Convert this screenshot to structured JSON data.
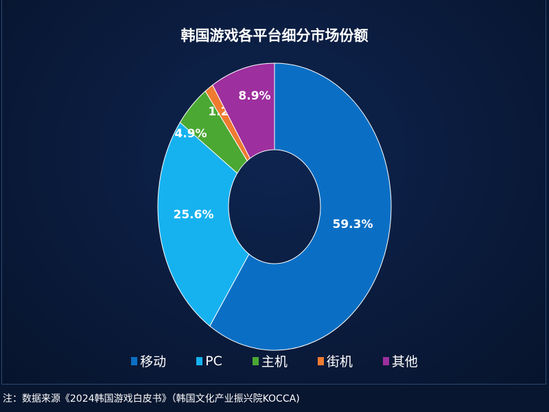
{
  "chart_data": {
    "type": "pie",
    "variant": "donut",
    "title": "韩国游戏各平台细分市场份额",
    "unit": "%",
    "legend_position": "bottom",
    "slices": [
      {
        "name": "移动",
        "value": 59.3,
        "label": "59.3%",
        "color": "#0a6fc4"
      },
      {
        "name": "PC",
        "value": 25.6,
        "label": "25.6%",
        "color": "#16b2f0"
      },
      {
        "name": "主机",
        "value": 4.9,
        "label": "4.9%",
        "color": "#4ba833"
      },
      {
        "name": "街机",
        "value": 1.2,
        "label": "1.2%",
        "color": "#ef7b31"
      },
      {
        "name": "其他",
        "value": 8.9,
        "label": "8.9%",
        "color": "#9d2f9e"
      }
    ]
  },
  "footer": "注：数据来源《2024韩国游戏白皮书》（韩国文化产业振兴院KOCCA)",
  "colors": {
    "background": "#0a1a3a"
  }
}
